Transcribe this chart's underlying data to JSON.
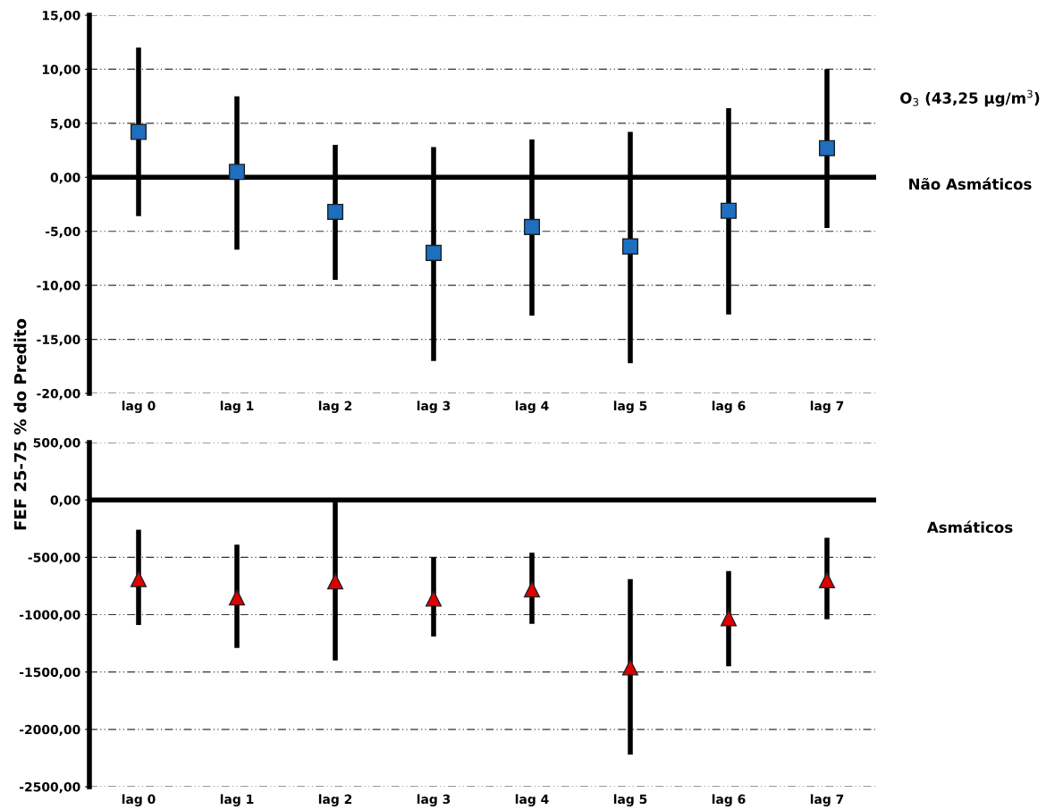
{
  "chart_data": [
    {
      "type": "scatter",
      "ylabel": "FEF 25-75 % do Predito",
      "categories": [
        "lag 0",
        "lag 1",
        "lag 2",
        "lag 3",
        "lag 4",
        "lag 5",
        "lag 6",
        "lag 7"
      ],
      "series": [
        {
          "color": "#1f6fc0",
          "marker": "square",
          "values": [
            4.2,
            0.5,
            -3.2,
            -7.0,
            -4.6,
            -6.4,
            -3.1,
            2.7
          ],
          "errors": [
            [
              -3.6,
              12
            ],
            [
              -6.7,
              7.5
            ],
            [
              -9.5,
              3
            ],
            [
              -17,
              2.8
            ],
            [
              -12.8,
              3.5
            ],
            [
              -17.2,
              4.2
            ],
            [
              -12.7,
              6.4
            ],
            [
              -4.7,
              10
            ]
          ]
        }
      ],
      "ylim": [
        -20,
        15
      ],
      "yticks": [
        {
          "value": -20,
          "label": "-20,00"
        },
        {
          "value": -15,
          "label": "-15,00"
        },
        {
          "value": -10,
          "label": "-10,00"
        },
        {
          "value": -5,
          "label": "-5,00"
        },
        {
          "value": 0,
          "label": "0,00"
        },
        {
          "value": 5,
          "label": "5,00"
        },
        {
          "value": 10,
          "label": "10,00"
        },
        {
          "value": 15,
          "label": "15,00"
        }
      ],
      "grid": "y",
      "ref_lines": [
        {
          "axis": "y",
          "value": 0,
          "color": "#000000"
        }
      ],
      "annotations": [
        "O$_{3}$ (43,25 µg/m$^{3}$)",
        "Não Asmáticos"
      ]
    },
    {
      "type": "scatter",
      "categories": [
        "lag 0",
        "lag 1",
        "lag 2",
        "lag 3",
        "lag 4",
        "lag 5",
        "lag 6",
        "lag 7"
      ],
      "series": [
        {
          "color": "#e00000",
          "marker": "triangle",
          "values": [
            -690,
            -850,
            -710,
            -860,
            -780,
            -1460,
            -1030,
            -700
          ],
          "errors": [
            [
              -1090,
              -260
            ],
            [
              -1290,
              -390
            ],
            [
              -1400,
              0
            ],
            [
              -1190,
              -500
            ],
            [
              -1080,
              -460
            ],
            [
              -2220,
              -690
            ],
            [
              -1450,
              -620
            ],
            [
              -1040,
              -330
            ]
          ]
        }
      ],
      "ylim": [
        -2500,
        500
      ],
      "yticks": [
        {
          "value": -2500,
          "label": "-2500,00"
        },
        {
          "value": -2000,
          "label": "-2000,00"
        },
        {
          "value": -1500,
          "label": "-1500,00"
        },
        {
          "value": -1000,
          "label": "-1000,00"
        },
        {
          "value": -500,
          "label": "-500,00"
        },
        {
          "value": 0,
          "label": "0,00"
        },
        {
          "value": 500,
          "label": "500,00"
        }
      ],
      "grid": "y",
      "ref_lines": [
        {
          "axis": "y",
          "value": 0,
          "color": "#000000"
        }
      ],
      "annotations": [
        "Asmáticos"
      ]
    }
  ]
}
